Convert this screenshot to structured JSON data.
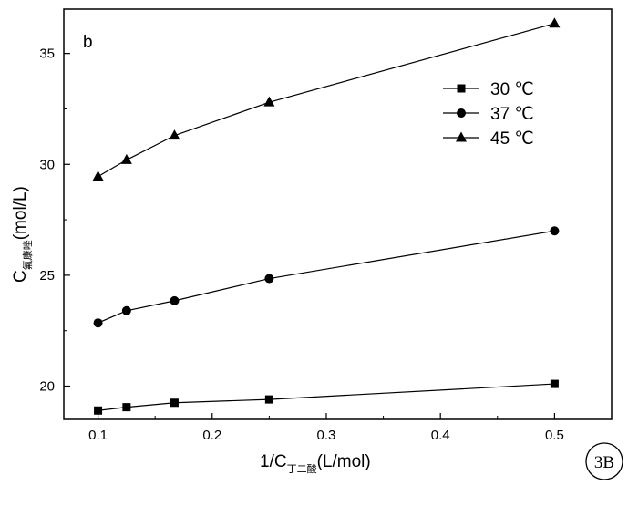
{
  "chart_data": {
    "type": "line",
    "panel_label": "b",
    "badge": "3B",
    "xlabel": {
      "main": "1/C",
      "sub": "丁二酸",
      "unit": "(L/mol)"
    },
    "ylabel": {
      "main": "C",
      "sub": "氟康唑",
      "unit": "(mol/L)"
    },
    "xlim": [
      0.07,
      0.55
    ],
    "ylim": [
      18.5,
      37
    ],
    "x_ticks": [
      0.1,
      0.2,
      0.3,
      0.4,
      0.5
    ],
    "x_tick_labels": [
      "0.1",
      "0.2",
      "0.3",
      "0.4",
      "0.5"
    ],
    "y_ticks": [
      20,
      25,
      30,
      35
    ],
    "y_tick_labels": [
      "20",
      "25",
      "30",
      "35"
    ],
    "legend_position": "top-right",
    "series": [
      {
        "name": "30 ℃",
        "marker": "square",
        "x": [
          0.1,
          0.125,
          0.167,
          0.25,
          0.5
        ],
        "y": [
          18.9,
          19.05,
          19.25,
          19.4,
          20.1
        ]
      },
      {
        "name": "37 ℃",
        "marker": "circle",
        "x": [
          0.1,
          0.125,
          0.167,
          0.25,
          0.5
        ],
        "y": [
          22.85,
          23.4,
          23.85,
          24.85,
          27.0
        ]
      },
      {
        "name": "45 ℃",
        "marker": "triangle",
        "x": [
          0.1,
          0.125,
          0.167,
          0.25,
          0.5
        ],
        "y": [
          29.45,
          30.2,
          31.3,
          32.8,
          36.35
        ]
      }
    ]
  }
}
